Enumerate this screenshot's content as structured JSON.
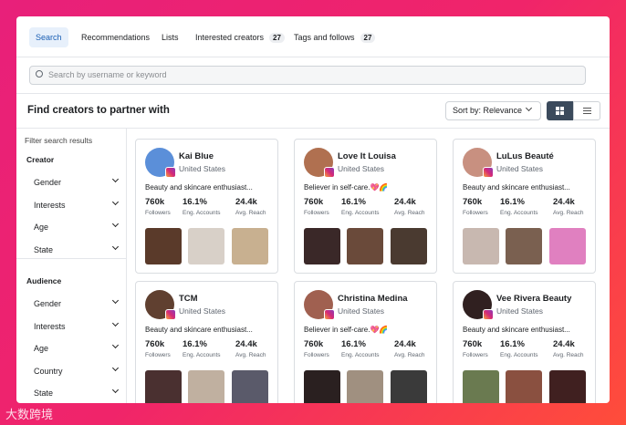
{
  "tabs": [
    {
      "label": "Search"
    },
    {
      "label": "Recommendations"
    },
    {
      "label": "Lists"
    },
    {
      "label": "Interested creators",
      "count": 27
    },
    {
      "label": "Tags and follows",
      "count": 27
    }
  ],
  "search_placeholder": "Search by username or keyword",
  "heading": "Find creators to partner with",
  "sort_label": "Sort by: Relevance",
  "sidebar": {
    "title": "Filter search results",
    "sections": [
      {
        "title": "Creator",
        "items": [
          "Gender",
          "Interests",
          "Age",
          "State"
        ]
      },
      {
        "title": "Audience",
        "items": [
          "Gender",
          "Interests",
          "Age",
          "Country",
          "State"
        ]
      }
    ]
  },
  "stat_labels": [
    "Followers",
    "Eng. Accounts",
    "Avg. Reach"
  ],
  "creators": [
    {
      "name": "Kai Blue",
      "country": "United States",
      "bio": "Beauty and skincare enthusiast...",
      "stats": [
        "760k",
        "16.1%",
        "24.4k"
      ]
    },
    {
      "name": "Love It Louisa",
      "country": "United States",
      "bio": "Believer in self-care.💖🌈",
      "stats": [
        "760k",
        "16.1%",
        "24.4k"
      ]
    },
    {
      "name": "LuLus Beauté",
      "country": "United States",
      "bio": "Beauty and skincare enthusiast...",
      "stats": [
        "760k",
        "16.1%",
        "24.4k"
      ]
    },
    {
      "name": "TCM",
      "country": "United States",
      "bio": "Beauty and skincare enthusiast...",
      "stats": [
        "760k",
        "16.1%",
        "24.4k"
      ]
    },
    {
      "name": "Christina Medina",
      "country": "United States",
      "bio": "Believer in self-care.💖🌈",
      "stats": [
        "760k",
        "16.1%",
        "24.4k"
      ]
    },
    {
      "name": "Vee Rivera Beauty",
      "country": "United States",
      "bio": "Beauty and skincare enthusiast...",
      "stats": [
        "760k",
        "16.1%",
        "24.4k"
      ]
    }
  ],
  "watermark": "大数跨境"
}
